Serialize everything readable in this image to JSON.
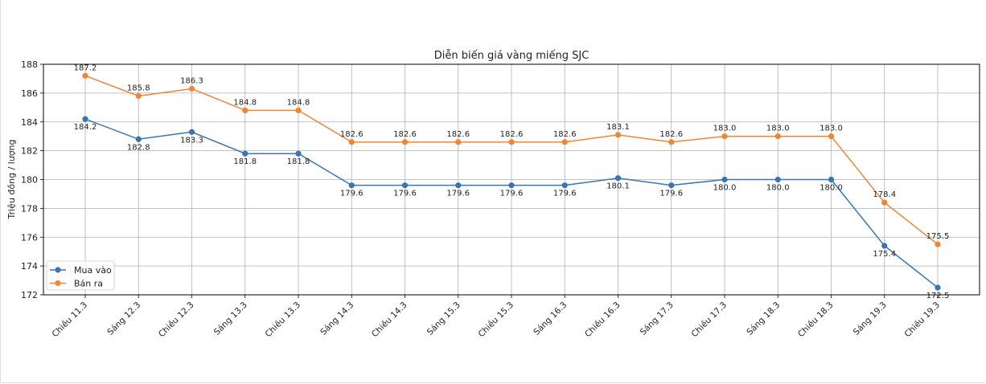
{
  "chart_data": {
    "type": "line",
    "title": "Diễn biến giá vàng miếng SJC",
    "xlabel": "",
    "ylabel": "Triệu đồng / lượng",
    "ylim": [
      172,
      188
    ],
    "yticks": [
      172,
      174,
      176,
      178,
      180,
      182,
      184,
      186,
      188
    ],
    "grid": true,
    "legend_position": "lower-left",
    "categories": [
      "Chiều 11.3",
      "Sáng 12.3",
      "Chiều 12.3",
      "Sáng 13.3",
      "Chiều 13.3",
      "Sáng 14.3",
      "Chiều 14.3",
      "Sáng 15.3",
      "Chiều 15.3",
      "Sáng 16.3",
      "Chiều 16.3",
      "Sáng 17.3",
      "Chiều 17.3",
      "Sáng 18.3",
      "Chiều 18.3",
      "Sáng 19.3",
      "Chiều 19.3"
    ],
    "series": [
      {
        "name": "Mua vào",
        "color": "#3b75af",
        "label_position": "below",
        "values": [
          184.2,
          182.8,
          183.3,
          181.8,
          181.8,
          179.6,
          179.6,
          179.6,
          179.6,
          179.6,
          180.1,
          179.6,
          180.0,
          180.0,
          180.0,
          175.4,
          172.5
        ]
      },
      {
        "name": "Bán ra",
        "color": "#ef8636",
        "label_position": "above",
        "values": [
          187.2,
          185.8,
          186.3,
          184.8,
          184.8,
          182.6,
          182.6,
          182.6,
          182.6,
          182.6,
          183.1,
          182.6,
          183.0,
          183.0,
          183.0,
          178.4,
          175.5
        ]
      }
    ]
  }
}
